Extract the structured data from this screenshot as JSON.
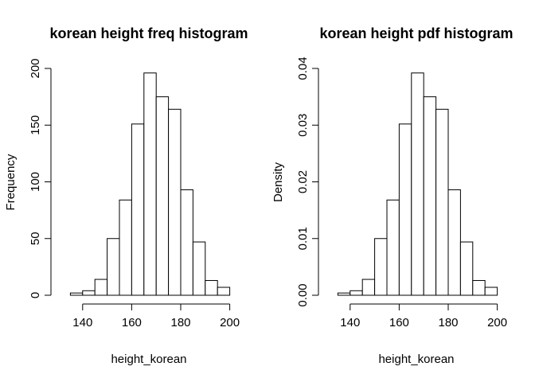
{
  "chart_data": [
    {
      "type": "bar",
      "title": "korean height freq histogram",
      "xlabel": "height_korean",
      "ylabel": "Frequency",
      "bin_width": 5,
      "bin_starts": [
        135,
        140,
        145,
        150,
        155,
        160,
        165,
        170,
        175,
        180,
        185,
        190,
        195
      ],
      "values": [
        2,
        4,
        14,
        50,
        84,
        151,
        196,
        175,
        164,
        93,
        47,
        13,
        7
      ],
      "xlim": [
        130,
        205
      ],
      "ylim": [
        0,
        200
      ],
      "x_ticks": [
        140,
        160,
        180,
        200
      ],
      "x_tick_labels": [
        "140",
        "160",
        "180",
        "200"
      ],
      "y_ticks": [
        0,
        50,
        100,
        150,
        200
      ],
      "y_tick_labels": [
        "0",
        "50",
        "100",
        "150",
        "200"
      ],
      "grid": false
    },
    {
      "type": "bar",
      "title": "korean height pdf histogram",
      "xlabel": "height_korean",
      "ylabel": "Density",
      "bin_width": 5,
      "bin_starts": [
        135,
        140,
        145,
        150,
        155,
        160,
        165,
        170,
        175,
        180,
        185,
        190,
        195
      ],
      "values": [
        0.0004,
        0.0008,
        0.0028,
        0.01,
        0.0168,
        0.0302,
        0.0392,
        0.035,
        0.0328,
        0.0186,
        0.0094,
        0.0026,
        0.0014
      ],
      "xlim": [
        130,
        205
      ],
      "ylim": [
        0,
        0.04
      ],
      "x_ticks": [
        140,
        160,
        180,
        200
      ],
      "x_tick_labels": [
        "140",
        "160",
        "180",
        "200"
      ],
      "y_ticks": [
        0,
        0.01,
        0.02,
        0.03,
        0.04
      ],
      "y_tick_labels": [
        "0.00",
        "0.01",
        "0.02",
        "0.03",
        "0.04"
      ],
      "grid": false
    }
  ]
}
